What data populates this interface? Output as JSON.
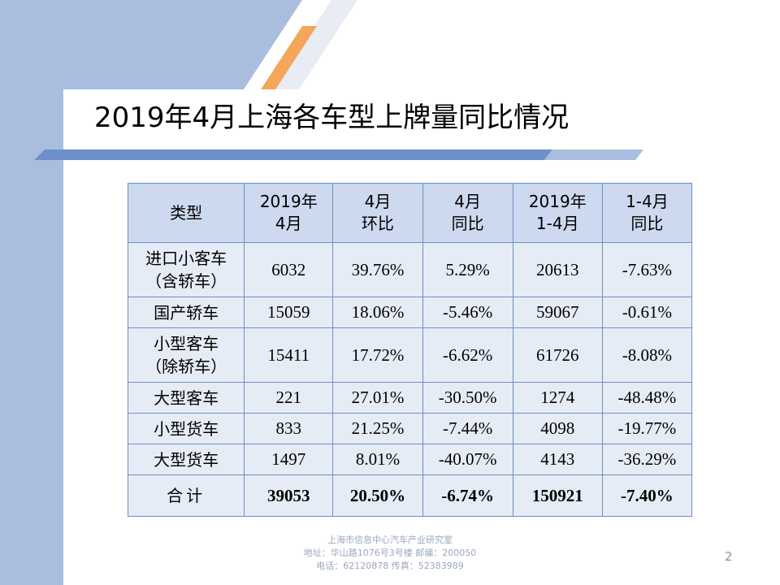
{
  "title": "2019年4月上海各车型上牌量同比情况",
  "table": {
    "headers": [
      [
        "类型"
      ],
      [
        "2019年",
        "4月"
      ],
      [
        "4月",
        "环比"
      ],
      [
        "4月",
        "同比"
      ],
      [
        "2019年",
        "1-4月"
      ],
      [
        "1-4月",
        "同比"
      ]
    ],
    "rows": [
      {
        "type": [
          "进口小客车",
          "（含轿车）"
        ],
        "apr2019": "6032",
        "mom": "39.76%",
        "yoy": "5.29%",
        "jan_apr2019": "20613",
        "jan_apr_yoy": "-7.63%"
      },
      {
        "type": [
          "国产轿车"
        ],
        "apr2019": "15059",
        "mom": "18.06%",
        "yoy": "-5.46%",
        "jan_apr2019": "59067",
        "jan_apr_yoy": "-0.61%"
      },
      {
        "type": [
          "小型客车",
          "（除轿车）"
        ],
        "apr2019": "15411",
        "mom": "17.72%",
        "yoy": "-6.62%",
        "jan_apr2019": "61726",
        "jan_apr_yoy": "-8.08%"
      },
      {
        "type": [
          "大型客车"
        ],
        "apr2019": "221",
        "mom": "27.01%",
        "yoy": "-30.50%",
        "jan_apr2019": "1274",
        "jan_apr_yoy": "-48.48%"
      },
      {
        "type": [
          "小型货车"
        ],
        "apr2019": "833",
        "mom": "21.25%",
        "yoy": "-7.44%",
        "jan_apr2019": "4098",
        "jan_apr_yoy": "-19.77%"
      },
      {
        "type": [
          "大型货车"
        ],
        "apr2019": "1497",
        "mom": "8.01%",
        "yoy": "-40.07%",
        "jan_apr2019": "4143",
        "jan_apr_yoy": "-36.29%"
      }
    ],
    "total": {
      "type": "合计",
      "apr2019": "39053",
      "mom": "20.50%",
      "yoy": "-6.74%",
      "jan_apr2019": "150921",
      "jan_apr_yoy": "-7.40%"
    }
  },
  "footer": {
    "org": "上海市信息中心汽车产业研究室",
    "address": "地址：华山路1076号3号楼   邮编：200050",
    "phone": "电话：62120878  传真：52383989"
  },
  "page_number": "2",
  "colors": {
    "side_band": "#a9bedf",
    "header_fill": "#cdd9ee",
    "cell_fill": "#e6ecf6",
    "border": "#6f8fc4",
    "accent_orange": "#f4a65b",
    "accent_blue": "#5a7fc0"
  }
}
